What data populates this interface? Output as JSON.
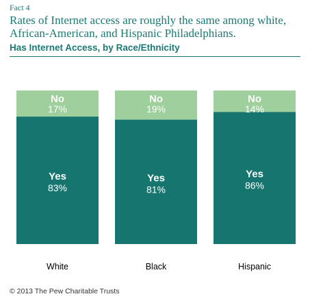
{
  "header": {
    "fact_label": "Fact 4",
    "headline": "Rates of Internet access are roughly the same among white, African-American, and Hispanic Philadelphians.",
    "subtitle": "Has Internet Access, by Race/Ethnicity"
  },
  "footer": {
    "copyright": "© 2013 The Pew Charitable Trusts"
  },
  "colors": {
    "yes": "#17756f",
    "no": "#9fcf9c",
    "text_primary": "#1a7a73",
    "yes_label": "#ffffff",
    "no_label": "#ffffff",
    "axis_label": "#000000"
  },
  "chart_data": {
    "type": "bar",
    "stacked": true,
    "normalized_percent": true,
    "categories": [
      "White",
      "Black",
      "Hispanic"
    ],
    "series": [
      {
        "name": "Yes",
        "values": [
          83,
          81,
          86
        ]
      },
      {
        "name": "No",
        "values": [
          17,
          19,
          14
        ]
      }
    ],
    "value_format": "{v}%",
    "ylim": [
      0,
      100
    ]
  }
}
